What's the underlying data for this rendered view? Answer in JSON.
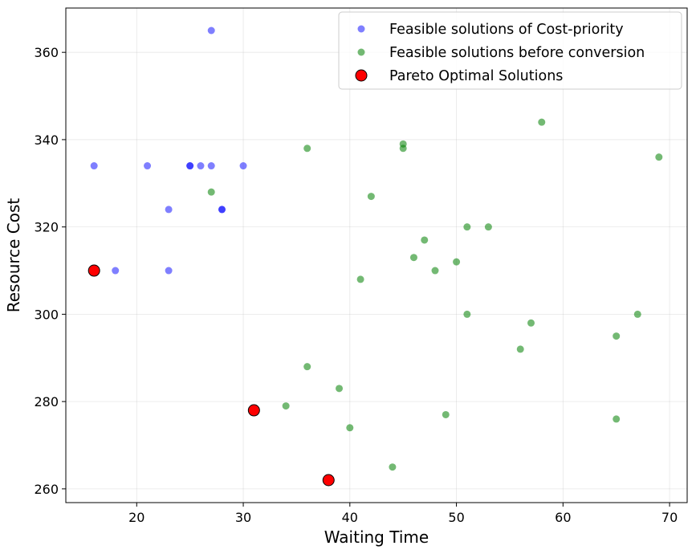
{
  "chart_data": {
    "type": "scatter",
    "xlabel": "Waiting Time",
    "ylabel": "Resource Cost",
    "xlim": [
      13.35,
      71.65
    ],
    "ylim": [
      256.85,
      370.15
    ],
    "xticks": [
      20,
      30,
      40,
      50,
      60,
      70
    ],
    "yticks": [
      260,
      280,
      300,
      320,
      340,
      360
    ],
    "grid": true,
    "legend_position": "top-right",
    "series": [
      {
        "name": "Feasible solutions of Cost-priority",
        "color": "#0000ff",
        "opacity": 0.5,
        "points": [
          [
            16,
            334
          ],
          [
            18,
            310
          ],
          [
            21,
            334
          ],
          [
            23,
            324
          ],
          [
            23,
            310
          ],
          [
            25,
            334
          ],
          [
            25,
            334
          ],
          [
            26,
            334
          ],
          [
            27,
            365
          ],
          [
            27,
            334
          ],
          [
            28,
            324
          ],
          [
            28,
            324
          ],
          [
            30,
            334
          ]
        ]
      },
      {
        "name": "Feasible solutions before conversion",
        "color": "#008000",
        "opacity": 0.55,
        "points": [
          [
            27,
            328
          ],
          [
            34,
            279
          ],
          [
            36,
            338
          ],
          [
            36,
            288
          ],
          [
            39,
            283
          ],
          [
            40,
            274
          ],
          [
            41,
            308
          ],
          [
            42,
            327
          ],
          [
            44,
            265
          ],
          [
            45,
            339
          ],
          [
            45,
            338
          ],
          [
            46,
            313
          ],
          [
            47,
            317
          ],
          [
            48,
            310
          ],
          [
            49,
            277
          ],
          [
            50,
            312
          ],
          [
            51,
            320
          ],
          [
            51,
            300
          ],
          [
            53,
            320
          ],
          [
            56,
            292
          ],
          [
            57,
            298
          ],
          [
            58,
            344
          ],
          [
            65,
            295
          ],
          [
            65,
            276
          ],
          [
            67,
            300
          ],
          [
            69,
            336
          ]
        ]
      },
      {
        "name": "Pareto Optimal Solutions",
        "color": "#ff0000",
        "edge_color": "#000000",
        "opacity": 1,
        "points": [
          [
            16,
            310
          ],
          [
            31,
            278
          ],
          [
            38,
            262
          ]
        ]
      }
    ]
  }
}
